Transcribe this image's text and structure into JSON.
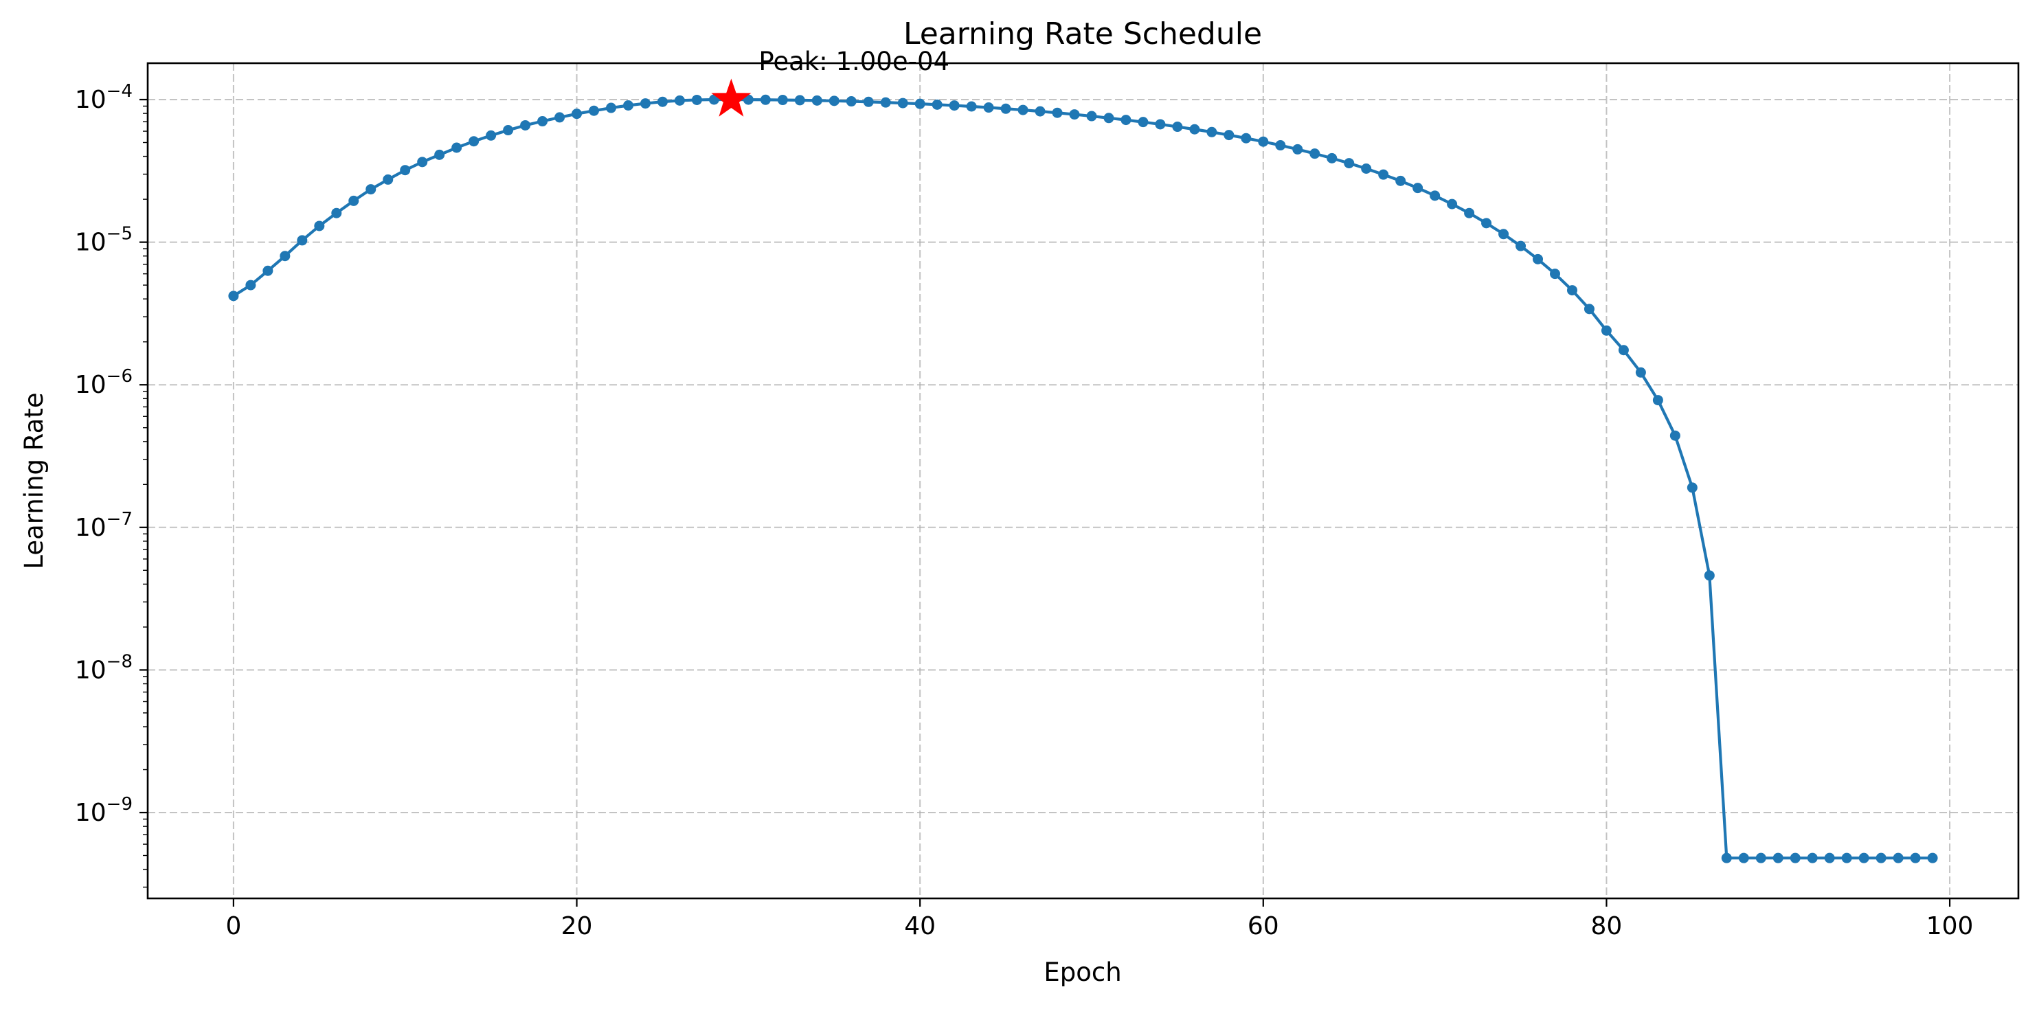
{
  "chart_data": {
    "type": "line",
    "title": "Learning Rate Schedule",
    "xlabel": "Epoch",
    "ylabel": "Learning Rate",
    "yscale": "log",
    "xlim": [
      -5,
      104
    ],
    "ylim": [
      2.5e-10,
      0.00018
    ],
    "x_ticks": [
      0,
      20,
      40,
      60,
      80,
      100
    ],
    "y_ticks": [
      {
        "value": 1e-09,
        "label": "10",
        "exp": "−9"
      },
      {
        "value": 1e-08,
        "label": "10",
        "exp": "−8"
      },
      {
        "value": 1e-07,
        "label": "10",
        "exp": "−7"
      },
      {
        "value": 1e-06,
        "label": "10",
        "exp": "−6"
      },
      {
        "value": 1e-05,
        "label": "10",
        "exp": "−5"
      },
      {
        "value": 0.0001,
        "label": "10",
        "exp": "−4"
      }
    ],
    "grid": true,
    "colors": {
      "line": "#1f77b4",
      "peak_marker": "#ff0000"
    },
    "series": [
      {
        "x": [
          0,
          1,
          2,
          3,
          4,
          5,
          6,
          7,
          8,
          9,
          10,
          11,
          12,
          13,
          14,
          15,
          16,
          17,
          18,
          19,
          20,
          21,
          22,
          23,
          24,
          25,
          26,
          27,
          28,
          29,
          30,
          31,
          32,
          33,
          34,
          35,
          36,
          37,
          38,
          39,
          40,
          41,
          42,
          43,
          44,
          45,
          46,
          47,
          48,
          49,
          50,
          51,
          52,
          53,
          54,
          55,
          56,
          57,
          58,
          59,
          60,
          61,
          62,
          63,
          64,
          65,
          66,
          67,
          68,
          69,
          70,
          71,
          72,
          73,
          74,
          75,
          76,
          77,
          78,
          79,
          80,
          81,
          82,
          83,
          84,
          85,
          86,
          87,
          88,
          89,
          90,
          91,
          92,
          93,
          94,
          95,
          96,
          97,
          98,
          99
        ],
        "y": [
          4.2e-06,
          5e-06,
          6.3e-06,
          8e-06,
          1.03e-05,
          1.3e-05,
          1.6e-05,
          1.95e-05,
          2.35e-05,
          2.75e-05,
          3.2e-05,
          3.65e-05,
          4.1e-05,
          4.6e-05,
          5.1e-05,
          5.6e-05,
          6.1e-05,
          6.6e-05,
          7.05e-05,
          7.5e-05,
          7.95e-05,
          8.35e-05,
          8.75e-05,
          9.1e-05,
          9.4e-05,
          9.65e-05,
          9.85e-05,
          9.95e-05,
          0.0001,
          0.0001,
          9.99e-05,
          9.97e-05,
          9.94e-05,
          9.9e-05,
          9.85e-05,
          9.8e-05,
          9.72e-05,
          9.64e-05,
          9.55e-05,
          9.45e-05,
          9.34e-05,
          9.22e-05,
          9.09e-05,
          8.95e-05,
          8.8e-05,
          8.63e-05,
          8.46e-05,
          8.27e-05,
          8.08e-05,
          7.87e-05,
          7.66e-05,
          7.43e-05,
          7.2e-05,
          6.96e-05,
          6.71e-05,
          6.45e-05,
          6.19e-05,
          5.92e-05,
          5.64e-05,
          5.36e-05,
          5.07e-05,
          4.78e-05,
          4.48e-05,
          4.18e-05,
          3.88e-05,
          3.58e-05,
          3.28e-05,
          2.98e-05,
          2.69e-05,
          2.4e-05,
          2.12e-05,
          1.85e-05,
          1.6e-05,
          1.36e-05,
          1.14e-05,
          9.4e-06,
          7.6e-06,
          6e-06,
          4.6e-06,
          3.4e-06,
          2.4e-06,
          1.75e-06,
          1.22e-06,
          7.8e-07,
          4.4e-07,
          1.9e-07,
          4.6e-08,
          4.8e-10,
          4.8e-10,
          4.8e-10,
          4.8e-10,
          4.8e-10,
          4.8e-10,
          4.8e-10,
          4.8e-10,
          4.8e-10,
          4.8e-10,
          4.8e-10,
          4.8e-10,
          4.8e-10
        ]
      }
    ],
    "peak": {
      "x": 29,
      "y": 0.0001,
      "label": "Peak: 1.00e-04"
    }
  }
}
